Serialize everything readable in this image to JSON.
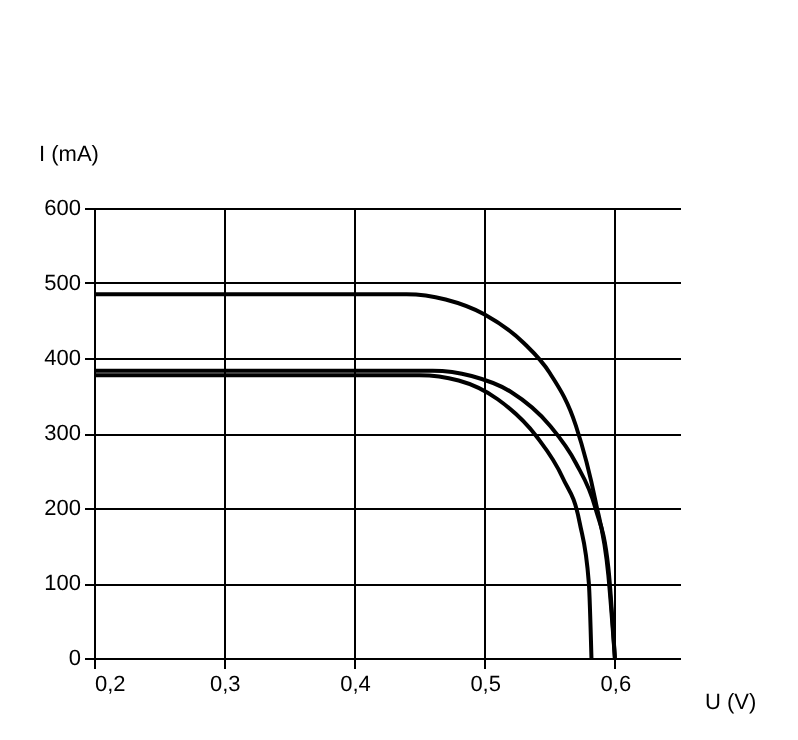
{
  "chart_data": {
    "type": "line",
    "xlabel": "U (V)",
    "ylabel": "I (mA)",
    "xlim": [
      0.2,
      0.65
    ],
    "xticks": [
      {
        "value": 0.2,
        "label": "0,2"
      },
      {
        "value": 0.3,
        "label": "0,3"
      },
      {
        "value": 0.4,
        "label": "0,4"
      },
      {
        "value": 0.5,
        "label": "0,5"
      },
      {
        "value": 0.6,
        "label": "0,6"
      }
    ],
    "ylim": [
      0,
      600
    ],
    "yticks": [
      0,
      100,
      200,
      300,
      400,
      500,
      600
    ],
    "grid": true,
    "marker": "none",
    "line_style": "solid",
    "series": [
      {
        "color": "#000000",
        "x": [
          0.2,
          0.44,
          0.47,
          0.5,
          0.53,
          0.55,
          0.57,
          0.585,
          0.595,
          0.6
        ],
        "values": [
          485,
          485,
          478,
          458,
          420,
          380,
          310,
          210,
          110,
          0
        ]
      },
      {
        "color": "#000000",
        "x": [
          0.2,
          0.46,
          0.49,
          0.52,
          0.55,
          0.57,
          0.585,
          0.595,
          0.6
        ],
        "values": [
          383,
          383,
          376,
          355,
          310,
          260,
          200,
          120,
          0
        ]
      },
      {
        "color": "#000000",
        "x": [
          0.2,
          0.45,
          0.48,
          0.51,
          0.54,
          0.56,
          0.573,
          0.58,
          0.582
        ],
        "values": [
          377,
          377,
          370,
          345,
          295,
          240,
          180,
          100,
          0
        ]
      }
    ]
  }
}
